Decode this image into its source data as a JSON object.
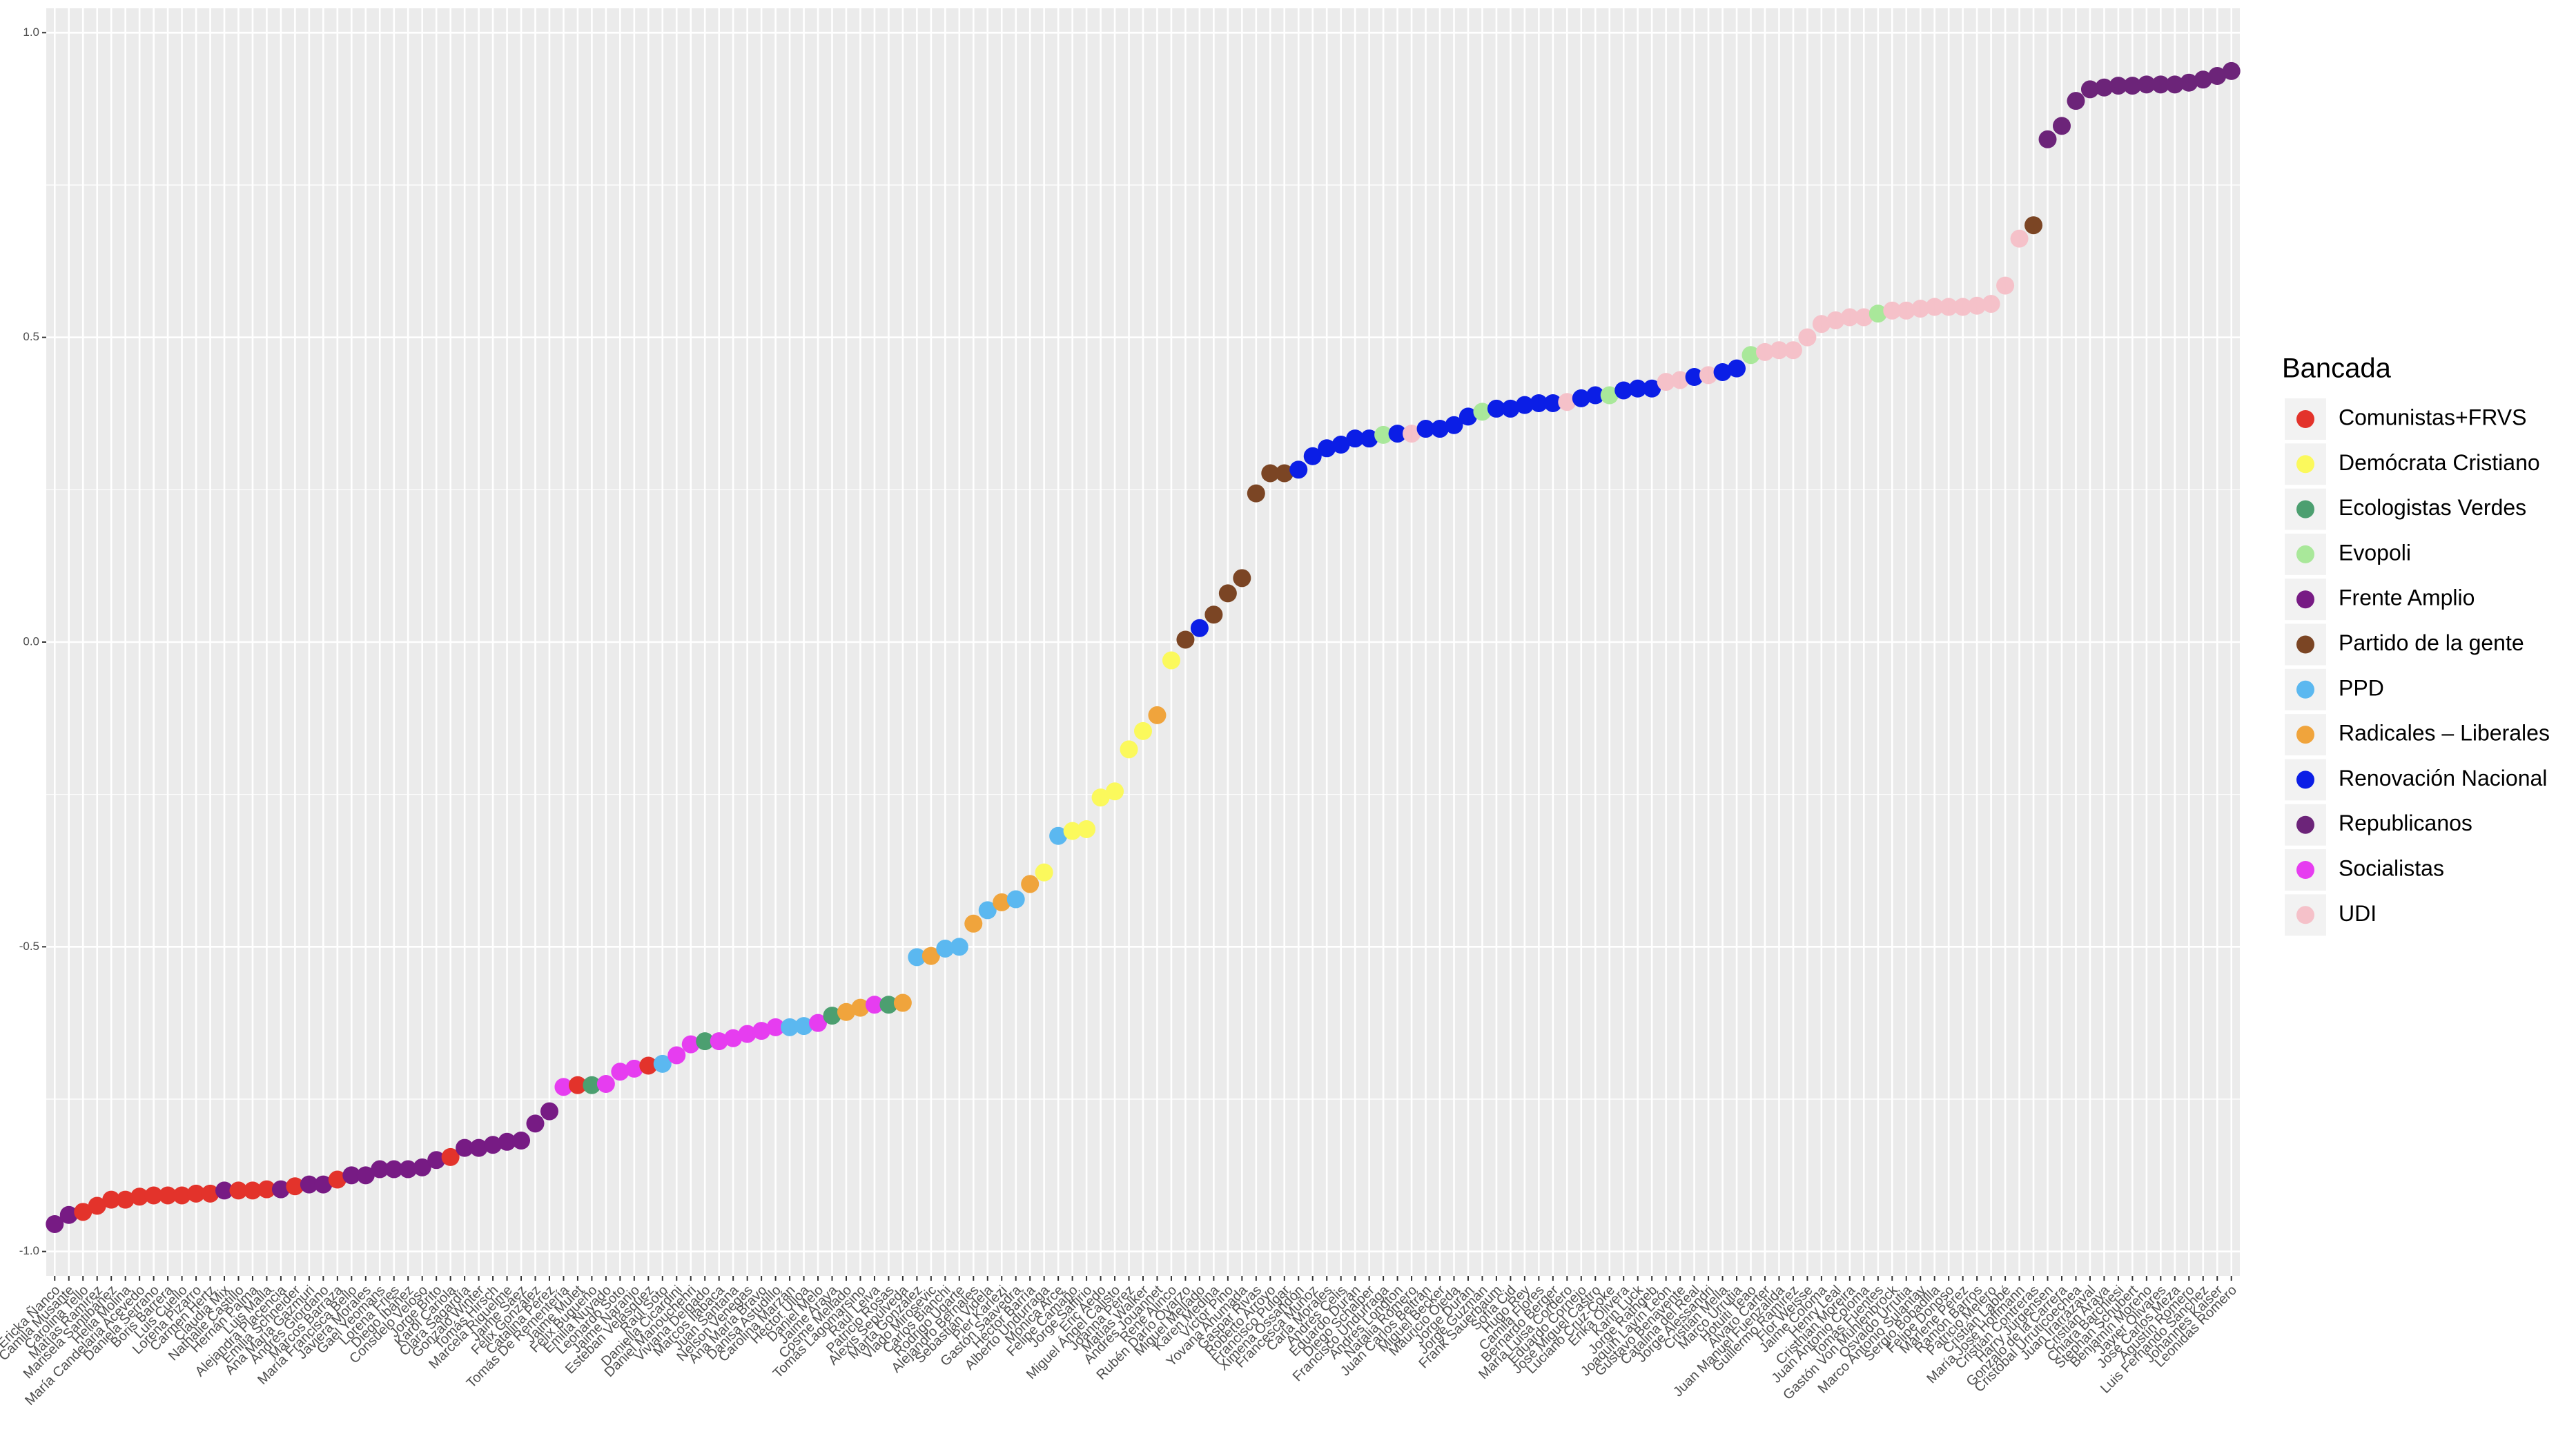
{
  "chart_data": {
    "type": "scatter",
    "categories": [
      "Ericka Ñanco",
      "Camila Musante",
      "Carolina Tello",
      "Matías Ramírez",
      "Marisela Santibáñez",
      "Helia Molina",
      "María Candelaria Acevedo",
      "Daniela Serrano",
      "Boris Barrera",
      "Luis Cuello",
      "Lorena Pizarro",
      "Carmen Hertz",
      "Claudia Mix",
      "Nathalie Castillo",
      "Hernán Palma",
      "Luis Malla",
      "Alejandra Placencia",
      "Emilia Schneider",
      "Ana María Gazmuri",
      "Andrés Giordano",
      "Marcos Barraza",
      "María Francisca Bello",
      "Javiera Morales",
      "Gael Yeomans",
      "Lorena Fries",
      "Diego Ibáñez",
      "Consuelo Veloso",
      "Jorge Brito",
      "Karol Cariola",
      "Clara Sagardía",
      "Gonzalo Winter",
      "Tomás Hirsch",
      "Marcela Riquelme",
      "Jaime Sáez",
      "Félix González",
      "Catalina Pérez",
      "Tomás De Rementería",
      "Jaime Mulet",
      "Félix Bugueño",
      "Emilia Nuyado",
      "Leonardo Soto",
      "Jaime Naranjo",
      "Esteban Velásquez",
      "Raúl Soto",
      "Daniella Cicardini",
      "Daniel Manouchehri",
      "Viviana Delgado",
      "Marcos Ilabaca",
      "Juan Santana",
      "Nelson Venegas",
      "Ana María Bravo",
      "Danisa Astudillo",
      "Carolina Marzán",
      "Héctor Ulloa",
      "Daniel Melo",
      "Jaime Araya",
      "Cosme Mellado",
      "Tomás Lagomarsino",
      "Raúl Leiva",
      "Patricio Rosas",
      "Alexis Sepúlveda",
      "Marta González",
      "Vlado Mirosevic",
      "Carlos Bianchi",
      "Rodrigo Ugarte",
      "Alejandro Bernales",
      "Sebastián Videla",
      "Pier Karlezi",
      "Gastón Saavedra",
      "Héctor Barría",
      "Alberto Undurraga",
      "Mónica Arce",
      "Felipe Camaño",
      "Jorge Saffirio",
      "Eric Aedo",
      "Miguel Ángel Calisto",
      "Joanna Pérez",
      "Matías Walker",
      "Andrés Jouannet",
      "René Alinco",
      "Rubén Darío Oyarzo",
      "Miguel Mellado",
      "Karen Medina",
      "Víctor Pino",
      "Yovana Ahumada",
      "Gaspar Rivas",
      "Roberto Arroyo",
      "Francisco Pulgar",
      "Ximena Ossandón",
      "Francesca Muñoz",
      "Carla Morales",
      "Andrés Celis",
      "Eduardo Durán",
      "Diego Schalper",
      "Francisco Undurraga",
      "Andrés Longton",
      "Natalia Romero",
      "Juan Carlos Beltrán",
      "Miguel Becker",
      "Mauricio Ojeda",
      "Jorge Durán",
      "Jorge Guzmán",
      "Frank Sauerbaum",
      "Sofía Cid",
      "Hugo Rey",
      "Camila Flores",
      "Bernardo Berger",
      "María Luisa Cordero",
      "Eduardo Cornejo",
      "José Miguel Castro",
      "Luciano Cruz-Coke",
      "Erika Olivera",
      "Karin Luck",
      "Jorge Rathgeb",
      "Joaquín Lavín León",
      "Gustavo Benavente",
      "Catalina del Real",
      "Jorge Alessandri",
      "Cristián Mella",
      "Marco Urrutia",
      "Hotuiti Teao",
      "Álvaro Carter",
      "Juan Manuel Fuenzalida",
      "Guillermo Ramírez",
      "Flor Weisse",
      "Jaime Coloma",
      "Henry Leal",
      "Cristhian Moreira",
      "Juan Antonio Coloma",
      "Tomás Fuentes",
      "Gastón Von Mühlenbrock",
      "Osvaldo Urrutia",
      "Marco Antonio Sulantay",
      "Sergio Bobadilla",
      "Felipe Donoso",
      "Marlene Pérez",
      "Ramón Barros",
      "Patricio Melero",
      "Cristián Labbé",
      "María José Hoffmann",
      "Cristián Contreras",
      "Harry Jürgensen",
      "Gonzalo de la Carrera",
      "Cristóbal Urruticoechea",
      "Juan Irarrázaval",
      "Cristián Araya",
      "Chiara Barchiesi",
      "Stephan Schubert",
      "Benjamín Moreno",
      "Javier Olivares",
      "José Carlos Meza",
      "Agustín Romero",
      "Luis Fernando Sánchez",
      "Johannes Kaiser",
      "Leonidas Romero"
    ],
    "values": [
      -0.955,
      -0.94,
      -0.935,
      -0.925,
      -0.915,
      -0.915,
      -0.91,
      -0.908,
      -0.908,
      -0.908,
      -0.905,
      -0.905,
      -0.9,
      -0.9,
      -0.9,
      -0.898,
      -0.898,
      -0.893,
      -0.89,
      -0.89,
      -0.882,
      -0.875,
      -0.875,
      -0.865,
      -0.865,
      -0.865,
      -0.862,
      -0.85,
      -0.845,
      -0.83,
      -0.83,
      -0.825,
      -0.82,
      -0.818,
      -0.79,
      -0.77,
      -0.73,
      -0.727,
      -0.727,
      -0.725,
      -0.705,
      -0.7,
      -0.695,
      -0.692,
      -0.678,
      -0.66,
      -0.655,
      -0.655,
      -0.65,
      -0.643,
      -0.638,
      -0.632,
      -0.632,
      -0.63,
      -0.625,
      -0.613,
      -0.607,
      -0.6,
      -0.595,
      -0.595,
      -0.592,
      -0.517,
      -0.515,
      -0.503,
      -0.5,
      -0.462,
      -0.44,
      -0.427,
      -0.422,
      -0.397,
      -0.378,
      -0.318,
      -0.31,
      -0.307,
      -0.255,
      -0.245,
      -0.176,
      -0.146,
      -0.12,
      -0.03,
      0.004,
      0.023,
      0.045,
      0.08,
      0.105,
      0.244,
      0.277,
      0.277,
      0.283,
      0.305,
      0.318,
      0.324,
      0.334,
      0.334,
      0.34,
      0.342,
      0.342,
      0.35,
      0.35,
      0.356,
      0.37,
      0.378,
      0.383,
      0.383,
      0.389,
      0.392,
      0.392,
      0.394,
      0.4,
      0.405,
      0.405,
      0.413,
      0.416,
      0.416,
      0.427,
      0.43,
      0.435,
      0.438,
      0.443,
      0.449,
      0.471,
      0.476,
      0.479,
      0.479,
      0.5,
      0.522,
      0.528,
      0.533,
      0.533,
      0.539,
      0.544,
      0.544,
      0.547,
      0.55,
      0.55,
      0.55,
      0.552,
      0.555,
      0.585,
      0.662,
      0.684,
      0.825,
      0.847,
      0.888,
      0.907,
      0.91,
      0.913,
      0.913,
      0.915,
      0.915,
      0.915,
      0.918,
      0.923,
      0.929,
      0.937
    ],
    "groups": [
      4,
      4,
      0,
      0,
      0,
      0,
      0,
      0,
      0,
      0,
      0,
      0,
      4,
      0,
      0,
      0,
      4,
      0,
      4,
      4,
      0,
      4,
      4,
      4,
      4,
      4,
      4,
      4,
      0,
      4,
      4,
      4,
      4,
      4,
      4,
      4,
      10,
      0,
      2,
      10,
      10,
      10,
      0,
      6,
      10,
      10,
      2,
      10,
      10,
      10,
      10,
      10,
      6,
      6,
      10,
      2,
      7,
      7,
      10,
      2,
      7,
      6,
      7,
      6,
      6,
      7,
      6,
      7,
      6,
      7,
      1,
      6,
      1,
      1,
      1,
      1,
      1,
      1,
      7,
      1,
      5,
      8,
      5,
      5,
      5,
      5,
      5,
      5,
      8,
      8,
      8,
      8,
      8,
      8,
      3,
      8,
      11,
      8,
      8,
      8,
      8,
      3,
      8,
      8,
      8,
      8,
      8,
      11,
      8,
      8,
      3,
      8,
      8,
      8,
      11,
      11,
      8,
      11,
      8,
      8,
      3,
      11,
      11,
      11,
      11,
      11,
      11,
      11,
      11,
      3,
      11,
      11,
      11,
      11,
      11,
      11,
      11,
      11,
      11,
      11,
      5,
      9,
      9,
      9,
      9,
      9,
      9,
      9,
      9,
      9,
      9,
      9,
      9,
      9,
      9
    ],
    "legend": {
      "title": "Bancada",
      "position": "right",
      "items": [
        {
          "name": "Comunistas+FRVS",
          "color": "#e3332b"
        },
        {
          "name": "Demócrata Cristiano",
          "color": "#fbf95c"
        },
        {
          "name": "Ecologistas Verdes",
          "color": "#4c9f70"
        },
        {
          "name": "Evopoli",
          "color": "#a9e89a"
        },
        {
          "name": "Frente Amplio",
          "color": "#771b84"
        },
        {
          "name": "Partido de la gente",
          "color": "#7b4524"
        },
        {
          "name": "PPD",
          "color": "#5bb8f0"
        },
        {
          "name": "Radicales – Liberales",
          "color": "#f0a43c"
        },
        {
          "name": "Renovación Nacional",
          "color": "#0b1ee6"
        },
        {
          "name": "Republicanos",
          "color": "#6c2479"
        },
        {
          "name": "Socialistas",
          "color": "#e63df0"
        },
        {
          "name": "UDI",
          "color": "#f5c1c9"
        }
      ]
    },
    "ylim": [
      -1.04,
      1.04
    ],
    "yticks": [
      {
        "value": -1,
        "label": "-1.0"
      },
      {
        "value": -0.5,
        "label": "-0.5"
      },
      {
        "value": 0,
        "label": "0.0"
      },
      {
        "value": 0.5,
        "label": "0.5"
      },
      {
        "value": 1,
        "label": "1.0"
      }
    ],
    "y_minor_ticks": [
      -0.75,
      -0.25,
      0.25,
      0.75
    ],
    "grid": true
  }
}
